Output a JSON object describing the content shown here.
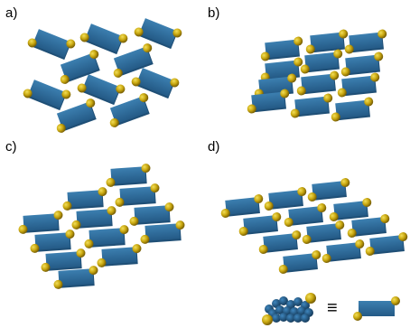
{
  "figure": {
    "panels": [
      {
        "label": "a)"
      },
      {
        "label": "b)"
      },
      {
        "label": "c)"
      },
      {
        "label": "d)"
      }
    ],
    "legend": {
      "symbol": "≡"
    }
  },
  "colors": {
    "plate": "#2c6797",
    "plate_dark": "#1f4f76",
    "plate_light": "#3c7fb0",
    "atom": "#c9a810",
    "atom_dark": "#8a6e05",
    "atom_light": "#f2de5a",
    "stack_ball": "#1d4f78",
    "stack_ball_light": "#3f86bd"
  }
}
